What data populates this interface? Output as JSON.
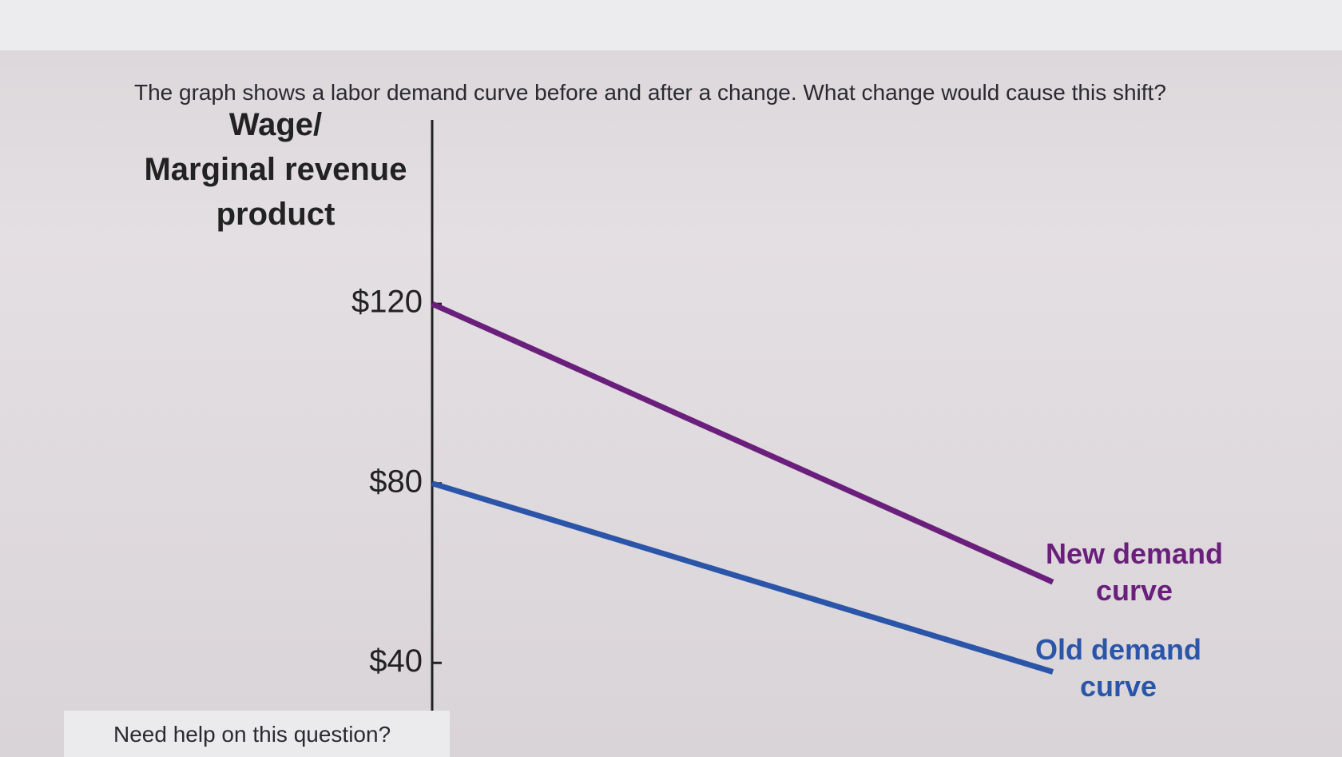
{
  "question": "The graph shows a labor demand curve before and after a change. What change would cause this shift?",
  "help": "Need help on this question?",
  "chart_data": {
    "type": "line",
    "y_label": "Wage/\nMarginal revenue\nproduct",
    "categories": [
      null,
      null
    ],
    "series": [
      {
        "name": "New demand\ncurve",
        "color": "#6b1f7c",
        "values": [
          120,
          58
        ]
      },
      {
        "name": "Old demand\ncurve",
        "color": "#2b55a8",
        "values": [
          80,
          38
        ]
      }
    ],
    "ylim": [
      29,
      161
    ],
    "yticks": [
      {
        "value": 40,
        "label": "$40"
      },
      {
        "value": 80,
        "label": "$80"
      },
      {
        "value": 120,
        "label": "$120"
      }
    ]
  }
}
